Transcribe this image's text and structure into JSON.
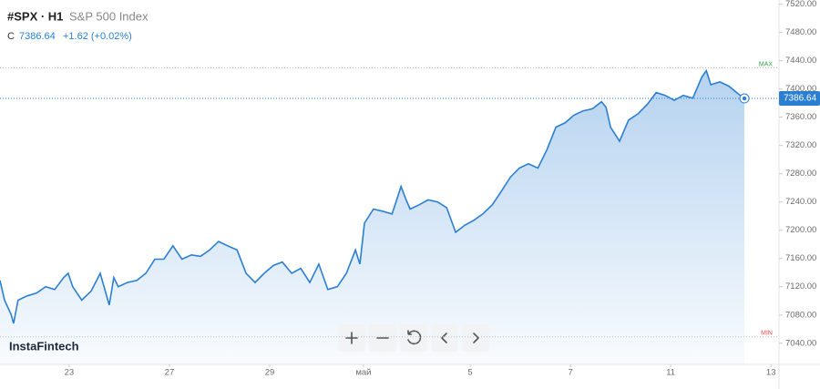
{
  "header": {
    "symbol": "#SPX · H1",
    "name": "S&P 500 Index",
    "close_label": "C",
    "change": "+1.62 (+0.02%)"
  },
  "branding": "InstaFintech",
  "chart_data": {
    "type": "area",
    "x": [
      -1.38,
      -1.29,
      -1.16,
      -1.11,
      -1.02,
      -0.84,
      -0.65,
      -0.47,
      -0.29,
      -0.11,
      -0.02,
      0.07,
      0.25,
      0.44,
      0.62,
      0.8,
      0.89,
      0.98,
      1.16,
      1.35,
      1.53,
      1.71,
      1.89,
      2.07,
      2.25,
      2.44,
      2.62,
      2.8,
      2.98,
      3.16,
      3.35,
      3.53,
      3.71,
      3.89,
      4.07,
      4.25,
      4.44,
      4.62,
      4.8,
      4.98,
      5.16,
      5.35,
      5.53,
      5.71,
      5.8,
      5.89,
      6.07,
      6.25,
      6.44,
      6.62,
      6.71,
      6.8,
      6.98,
      7.16,
      7.35,
      7.53,
      7.71,
      7.89,
      8.07,
      8.25,
      8.44,
      8.62,
      8.8,
      8.98,
      9.16,
      9.35,
      9.53,
      9.71,
      9.89,
      10.07,
      10.25,
      10.44,
      10.62,
      10.71,
      10.8,
      10.98,
      11.16,
      11.35,
      11.53,
      11.71,
      11.89,
      12.07,
      12.25,
      12.44,
      12.62,
      12.71,
      12.8,
      12.98,
      13.16,
      13.35,
      13.47
    ],
    "values": [
      7129,
      7101,
      7081,
      7068,
      7101,
      7107,
      7111,
      7120,
      7116,
      7133,
      7139,
      7120,
      7101,
      7114,
      7139,
      7094,
      7133,
      7120,
      7126,
      7129,
      7139,
      7159,
      7159,
      7178,
      7159,
      7165,
      7163,
      7172,
      7184,
      7178,
      7172,
      7139,
      7126,
      7139,
      7150,
      7155,
      7139,
      7146,
      7126,
      7152,
      7116,
      7120,
      7139,
      7172,
      7152,
      7210,
      7230,
      7227,
      7223,
      7262,
      7245,
      7230,
      7236,
      7243,
      7240,
      7232,
      7197,
      7207,
      7214,
      7223,
      7236,
      7255,
      7275,
      7288,
      7294,
      7288,
      7314,
      7346,
      7352,
      7363,
      7369,
      7372,
      7382,
      7374,
      7346,
      7326,
      7356,
      7365,
      7378,
      7395,
      7391,
      7384,
      7391,
      7387,
      7417,
      7426,
      7406,
      7410,
      7404,
      7393,
      7386.64
    ],
    "color": "#2b7fd3",
    "last_price": 7386.64,
    "max": {
      "value": 7430,
      "label": "MAX"
    },
    "min": {
      "value": 7049,
      "label": "MIN"
    },
    "xlim": [
      -1.38,
      14.16
    ],
    "xticks": [
      {
        "value": 0,
        "label": "23"
      },
      {
        "value": 2,
        "label": "27"
      },
      {
        "value": 4,
        "label": "29"
      },
      {
        "value": 5.87,
        "label": "май"
      },
      {
        "value": 8,
        "label": "5"
      },
      {
        "value": 10,
        "label": "7"
      },
      {
        "value": 12,
        "label": "11"
      },
      {
        "value": 14,
        "label": "13"
      }
    ],
    "ylim": [
      7010,
      7526
    ],
    "yticks": [
      {
        "value": 7040,
        "label": "7040.00"
      },
      {
        "value": 7080,
        "label": "7080.00"
      },
      {
        "value": 7120,
        "label": "7120.00"
      },
      {
        "value": 7160,
        "label": "7160.00"
      },
      {
        "value": 7200,
        "label": "7200.00"
      },
      {
        "value": 7240,
        "label": "7240.00"
      },
      {
        "value": 7280,
        "label": "7280.00"
      },
      {
        "value": 7320,
        "label": "7320.00"
      },
      {
        "value": 7360,
        "label": "7360.00"
      },
      {
        "value": 7400,
        "label": "7400.00"
      },
      {
        "value": 7440,
        "label": "7440.00"
      },
      {
        "value": 7480,
        "label": "7480.00"
      },
      {
        "value": 7520,
        "label": "7520.00"
      }
    ]
  }
}
